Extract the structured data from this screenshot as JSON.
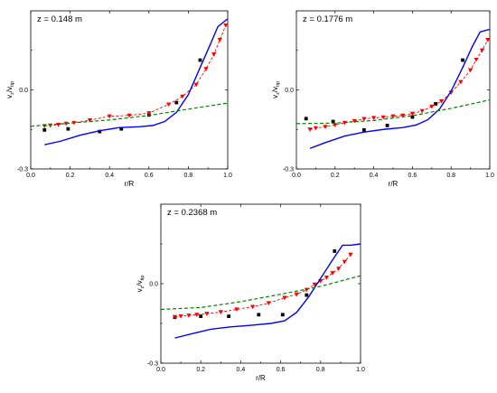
{
  "chart_data": [
    {
      "type": "line",
      "title": "z = 0.148 m",
      "xlabel": "r/R",
      "ylabel_main": "v",
      "ylabel_sub1": "z",
      "ylabel_sep": "/v",
      "ylabel_sub2": "tip",
      "xlim": [
        0.0,
        1.0
      ],
      "ylim": [
        -0.3,
        0.3
      ],
      "xticks": [
        "0.0",
        "0.2",
        "0.4",
        "0.6",
        "0.8",
        "1.0"
      ],
      "yticks": [
        "-0.3",
        "0.0"
      ],
      "series": [
        {
          "style": "square-markers",
          "color": "#000000",
          "x": [
            0.07,
            0.19,
            0.35,
            0.46,
            0.6,
            0.74,
            0.86
          ],
          "y": [
            -0.152,
            -0.148,
            -0.158,
            -0.148,
            -0.095,
            -0.048,
            0.113
          ]
        },
        {
          "style": "triangle-down-dashed",
          "color": "#ff0000",
          "x": [
            0.07,
            0.1,
            0.14,
            0.18,
            0.22,
            0.3,
            0.4,
            0.5,
            0.6,
            0.7,
            0.77,
            0.84,
            0.89,
            0.93,
            0.96,
            0.99
          ],
          "y": [
            -0.137,
            -0.135,
            -0.132,
            -0.128,
            -0.125,
            -0.115,
            -0.1,
            -0.097,
            -0.088,
            -0.055,
            -0.025,
            0.02,
            0.08,
            0.135,
            0.19,
            0.245
          ]
        },
        {
          "style": "solid",
          "color": "#0000ff",
          "x": [
            0.07,
            0.15,
            0.25,
            0.35,
            0.45,
            0.55,
            0.62,
            0.68,
            0.74,
            0.8,
            0.86,
            0.91,
            0.95,
            1.0
          ],
          "y": [
            -0.208,
            -0.195,
            -0.172,
            -0.155,
            -0.143,
            -0.14,
            -0.135,
            -0.12,
            -0.085,
            -0.018,
            0.085,
            0.17,
            0.24,
            0.27
          ]
        },
        {
          "style": "dashed",
          "color": "#008000",
          "x": [
            0.0,
            0.2,
            0.4,
            0.6,
            0.8,
            1.0
          ],
          "y": [
            -0.138,
            -0.126,
            -0.114,
            -0.097,
            -0.073,
            -0.05
          ]
        }
      ]
    },
    {
      "type": "line",
      "title": "z = 0.1776 m",
      "xlabel": "r/R",
      "ylabel_main": "v",
      "ylabel_sub1": "z",
      "ylabel_sep": "/v",
      "ylabel_sub2": "tip",
      "xlim": [
        0.0,
        1.0
      ],
      "ylim": [
        -0.3,
        0.3
      ],
      "xticks": [
        "0.0",
        "0.2",
        "0.4",
        "0.6",
        "0.8",
        "1.0"
      ],
      "yticks": [
        "-0.3",
        "0.0"
      ],
      "series": [
        {
          "style": "square-markers",
          "color": "#000000",
          "x": [
            0.05,
            0.19,
            0.35,
            0.47,
            0.6,
            0.72,
            0.86
          ],
          "y": [
            -0.109,
            -0.12,
            -0.152,
            -0.135,
            -0.103,
            -0.053,
            0.113
          ]
        },
        {
          "style": "triangle-down-dashed",
          "color": "#ff0000",
          "x": [
            0.07,
            0.1,
            0.15,
            0.2,
            0.25,
            0.3,
            0.35,
            0.4,
            0.45,
            0.5,
            0.55,
            0.6,
            0.65,
            0.7,
            0.75,
            0.8,
            0.85,
            0.9,
            0.93,
            0.96,
            0.99
          ],
          "y": [
            -0.15,
            -0.145,
            -0.14,
            -0.133,
            -0.125,
            -0.118,
            -0.11,
            -0.106,
            -0.104,
            -0.1,
            -0.097,
            -0.09,
            -0.08,
            -0.063,
            -0.043,
            -0.01,
            0.03,
            0.075,
            0.115,
            0.15,
            0.19
          ]
        },
        {
          "style": "solid",
          "color": "#0000ff",
          "x": [
            0.07,
            0.15,
            0.25,
            0.35,
            0.45,
            0.55,
            0.62,
            0.68,
            0.74,
            0.8,
            0.86,
            0.91,
            0.95,
            1.0
          ],
          "y": [
            -0.222,
            -0.2,
            -0.175,
            -0.16,
            -0.15,
            -0.143,
            -0.133,
            -0.113,
            -0.073,
            -0.005,
            0.085,
            0.165,
            0.22,
            0.23
          ]
        },
        {
          "style": "dashed",
          "color": "#008000",
          "x": [
            0.0,
            0.2,
            0.4,
            0.6,
            0.8,
            1.0
          ],
          "y": [
            -0.128,
            -0.126,
            -0.116,
            -0.098,
            -0.07,
            -0.038
          ]
        }
      ]
    },
    {
      "type": "line",
      "title": "z = 0.2368 m",
      "xlabel": "r/R",
      "ylabel_main": "v",
      "ylabel_sub1": "z",
      "ylabel_sep": "/v",
      "ylabel_sub2": "tip",
      "xlim": [
        0.0,
        1.0
      ],
      "ylim": [
        -0.3,
        0.3
      ],
      "xticks": [
        "0.0",
        "0.2",
        "0.4",
        "0.6",
        "0.8",
        "1.0"
      ],
      "yticks": [
        "-0.3",
        "0.0"
      ],
      "series": [
        {
          "style": "square-markers",
          "color": "#000000",
          "x": [
            0.07,
            0.2,
            0.34,
            0.49,
            0.61,
            0.73,
            0.87
          ],
          "y": [
            -0.127,
            -0.123,
            -0.123,
            -0.117,
            -0.117,
            -0.043,
            0.123
          ]
        },
        {
          "style": "triangle-down-dashed",
          "color": "#ff0000",
          "x": [
            0.07,
            0.1,
            0.14,
            0.18,
            0.23,
            0.3,
            0.38,
            0.46,
            0.54,
            0.62,
            0.68,
            0.73,
            0.77,
            0.8,
            0.83,
            0.86,
            0.89,
            0.92,
            0.95
          ],
          "y": [
            -0.125,
            -0.123,
            -0.12,
            -0.117,
            -0.113,
            -0.107,
            -0.097,
            -0.087,
            -0.073,
            -0.053,
            -0.04,
            -0.023,
            -0.003,
            0.01,
            0.023,
            0.04,
            0.057,
            0.083,
            0.11
          ]
        },
        {
          "style": "solid",
          "color": "#0000ff",
          "x": [
            0.07,
            0.15,
            0.25,
            0.35,
            0.45,
            0.55,
            0.62,
            0.68,
            0.74,
            0.8,
            0.86,
            0.91,
            0.95,
            1.0
          ],
          "y": [
            -0.205,
            -0.19,
            -0.172,
            -0.163,
            -0.157,
            -0.15,
            -0.14,
            -0.108,
            -0.05,
            0.02,
            0.09,
            0.145,
            0.145,
            0.15
          ]
        },
        {
          "style": "dashed",
          "color": "#008000",
          "x": [
            0.0,
            0.2,
            0.4,
            0.6,
            0.8,
            1.0
          ],
          "y": [
            -0.097,
            -0.09,
            -0.068,
            -0.04,
            -0.01,
            0.03
          ]
        }
      ]
    }
  ]
}
